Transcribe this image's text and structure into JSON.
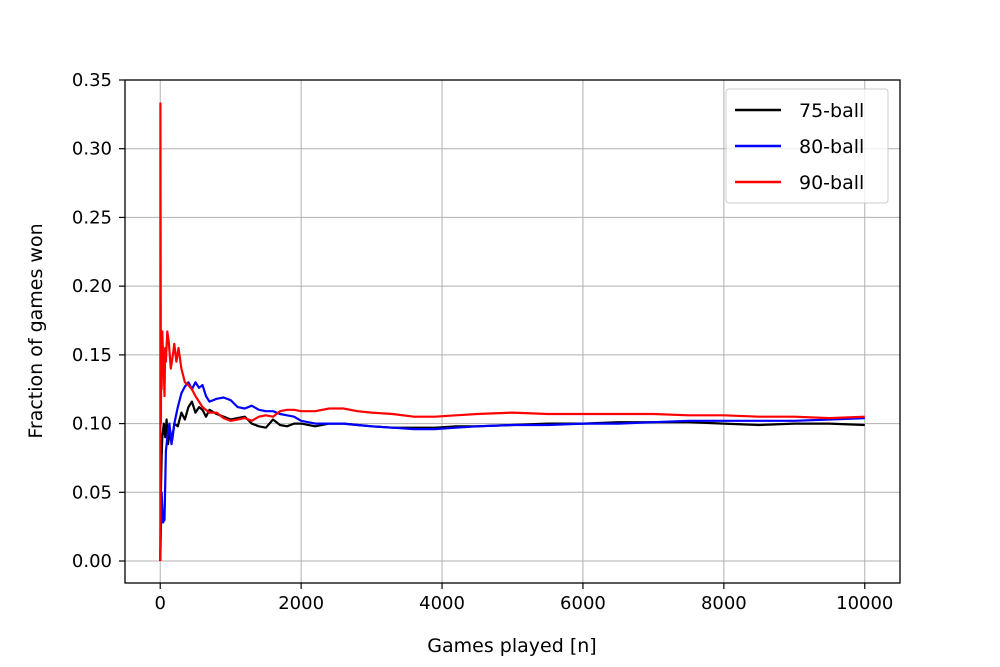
{
  "chart_data": {
    "type": "line",
    "title": "",
    "xlabel": "Games played [n]",
    "ylabel": "Fraction of games won",
    "xlim": [
      -500,
      10500
    ],
    "ylim": [
      -0.016,
      0.35
    ],
    "xticks": [
      0,
      2000,
      4000,
      6000,
      8000,
      10000
    ],
    "yticks": [
      0.0,
      0.05,
      0.1,
      0.15,
      0.2,
      0.25,
      0.3,
      0.35
    ],
    "xtick_labels": [
      "0",
      "2000",
      "4000",
      "6000",
      "8000",
      "10000"
    ],
    "ytick_labels": [
      "0.00",
      "0.05",
      "0.10",
      "0.15",
      "0.20",
      "0.25",
      "0.30",
      "0.35"
    ],
    "grid": true,
    "legend_position": "top-right",
    "series": [
      {
        "name": "75-ball",
        "color": "#000000",
        "x": [
          1,
          10,
          20,
          30,
          50,
          70,
          90,
          110,
          140,
          170,
          200,
          250,
          300,
          350,
          400,
          450,
          500,
          550,
          600,
          650,
          700,
          800,
          900,
          1000,
          1100,
          1200,
          1300,
          1400,
          1500,
          1600,
          1700,
          1800,
          1900,
          2000,
          2200,
          2400,
          2600,
          2800,
          3000,
          3300,
          3600,
          3900,
          4200,
          4500,
          5000,
          5500,
          6000,
          6500,
          7000,
          7500,
          8000,
          8500,
          9000,
          9500,
          10000
        ],
        "y": [
          0.0,
          0.05,
          0.075,
          0.09,
          0.1,
          0.09,
          0.103,
          0.085,
          0.095,
          0.088,
          0.1,
          0.098,
          0.108,
          0.103,
          0.112,
          0.116,
          0.108,
          0.112,
          0.11,
          0.105,
          0.11,
          0.107,
          0.105,
          0.103,
          0.104,
          0.105,
          0.1,
          0.098,
          0.097,
          0.103,
          0.099,
          0.098,
          0.1,
          0.1,
          0.098,
          0.1,
          0.1,
          0.099,
          0.098,
          0.097,
          0.097,
          0.097,
          0.098,
          0.098,
          0.099,
          0.1,
          0.1,
          0.101,
          0.101,
          0.101,
          0.1,
          0.099,
          0.1,
          0.1,
          0.099
        ]
      },
      {
        "name": "80-ball",
        "color": "#0000ff",
        "x": [
          1,
          20,
          40,
          60,
          80,
          100,
          130,
          160,
          200,
          250,
          300,
          350,
          400,
          450,
          500,
          550,
          600,
          650,
          700,
          800,
          900,
          1000,
          1100,
          1200,
          1300,
          1400,
          1500,
          1600,
          1700,
          1800,
          1900,
          2000,
          2200,
          2400,
          2600,
          2800,
          3000,
          3300,
          3600,
          3900,
          4200,
          4500,
          5000,
          5500,
          6000,
          6500,
          7000,
          7500,
          8000,
          8500,
          9000,
          9500,
          10000
        ],
        "y": [
          0.0,
          0.05,
          0.028,
          0.03,
          0.08,
          0.09,
          0.1,
          0.085,
          0.1,
          0.112,
          0.122,
          0.127,
          0.13,
          0.125,
          0.13,
          0.126,
          0.128,
          0.12,
          0.116,
          0.118,
          0.119,
          0.117,
          0.112,
          0.111,
          0.113,
          0.11,
          0.109,
          0.109,
          0.107,
          0.106,
          0.105,
          0.102,
          0.1,
          0.1,
          0.1,
          0.099,
          0.098,
          0.097,
          0.096,
          0.096,
          0.097,
          0.098,
          0.099,
          0.099,
          0.1,
          0.1,
          0.101,
          0.102,
          0.102,
          0.102,
          0.102,
          0.103,
          0.104
        ]
      },
      {
        "name": "90-ball",
        "color": "#ff0000",
        "x": [
          1,
          3,
          6,
          10,
          15,
          20,
          30,
          40,
          50,
          60,
          70,
          80,
          100,
          120,
          150,
          180,
          200,
          230,
          260,
          300,
          350,
          400,
          450,
          500,
          600,
          700,
          800,
          900,
          1000,
          1100,
          1200,
          1300,
          1400,
          1500,
          1600,
          1700,
          1800,
          1900,
          2000,
          2200,
          2400,
          2600,
          2800,
          3000,
          3300,
          3600,
          3900,
          4200,
          4500,
          5000,
          5500,
          6000,
          6500,
          7000,
          7500,
          8000,
          8500,
          9000,
          9500,
          10000
        ],
        "y": [
          0.0,
          0.333,
          0.2,
          0.1,
          0.16,
          0.125,
          0.167,
          0.15,
          0.14,
          0.12,
          0.155,
          0.145,
          0.167,
          0.16,
          0.14,
          0.15,
          0.158,
          0.145,
          0.155,
          0.14,
          0.13,
          0.128,
          0.125,
          0.12,
          0.112,
          0.108,
          0.108,
          0.104,
          0.102,
          0.103,
          0.104,
          0.102,
          0.105,
          0.106,
          0.105,
          0.109,
          0.11,
          0.11,
          0.109,
          0.109,
          0.111,
          0.111,
          0.109,
          0.108,
          0.107,
          0.105,
          0.105,
          0.106,
          0.107,
          0.108,
          0.107,
          0.107,
          0.107,
          0.107,
          0.106,
          0.106,
          0.105,
          0.105,
          0.104,
          0.105
        ]
      }
    ]
  }
}
